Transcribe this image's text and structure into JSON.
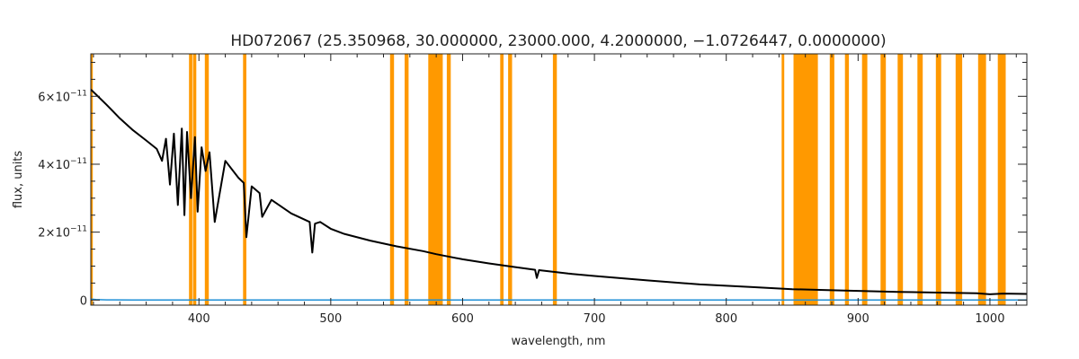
{
  "chart_data": {
    "type": "line",
    "title": "HD072067    (25.350968, 30.000000, 23000.000, 4.2000000, −1.0726447, 0.0000000)",
    "xlabel": "wavelength, nm",
    "ylabel": "flux, units",
    "xlim": [
      318,
      1028
    ],
    "ylim": [
      -1.5e-12,
      7.25e-11
    ],
    "x_ticks": [
      {
        "value": 400,
        "label": "400"
      },
      {
        "value": 500,
        "label": "500"
      },
      {
        "value": 600,
        "label": "600"
      },
      {
        "value": 700,
        "label": "700"
      },
      {
        "value": 800,
        "label": "800"
      },
      {
        "value": 900,
        "label": "900"
      },
      {
        "value": 1000,
        "label": "1000"
      }
    ],
    "y_ticks": [
      {
        "value": 0,
        "label": "0",
        "mantissa": "",
        "exponent": ""
      },
      {
        "value": 2e-11,
        "label": "2×10⁻¹¹",
        "mantissa": "2×10",
        "exponent": "−11"
      },
      {
        "value": 4e-11,
        "label": "4×10⁻¹¹",
        "mantissa": "4×10",
        "exponent": "−11"
      },
      {
        "value": 6e-11,
        "label": "6×10⁻¹¹",
        "mantissa": "6×10",
        "exponent": "−11"
      }
    ],
    "grid": false,
    "colors": {
      "spectrum": "#000000",
      "error": "#1e8fd6",
      "bands": "#ff9900",
      "axes": "#222222"
    },
    "series": [
      {
        "role": "spectrum",
        "x": [
          318,
          322,
          330,
          340,
          350,
          360,
          368,
          372,
          375,
          378,
          381,
          384,
          387,
          389,
          391,
          394,
          397,
          399,
          402,
          405,
          408,
          412,
          420,
          430,
          434,
          436,
          440,
          446,
          448,
          455,
          470,
          484,
          486,
          488,
          492,
          500,
          510,
          530,
          550,
          570,
          580,
          600,
          620,
          640,
          655,
          656.3,
          658,
          680,
          700,
          740,
          780,
          820,
          850,
          880,
          900,
          930,
          960,
          990,
          1000,
          1010,
          1028
        ],
        "y": [
          6.2e-11,
          6.05e-11,
          5.75e-11,
          5.35e-11,
          5e-11,
          4.7e-11,
          4.45e-11,
          4.1e-11,
          4.75e-11,
          3.4e-11,
          4.9e-11,
          2.8e-11,
          5.05e-11,
          2.5e-11,
          4.95e-11,
          3e-11,
          4.8e-11,
          2.6e-11,
          4.5e-11,
          3.8e-11,
          4.35e-11,
          2.3e-11,
          4.1e-11,
          3.6e-11,
          3.45e-11,
          1.85e-11,
          3.35e-11,
          3.15e-11,
          2.45e-11,
          2.95e-11,
          2.55e-11,
          2.3e-11,
          1.4e-11,
          2.25e-11,
          2.3e-11,
          2.1e-11,
          1.95e-11,
          1.75e-11,
          1.58e-11,
          1.44e-11,
          1.35e-11,
          1.2e-11,
          1.08e-11,
          9.7e-12,
          8.9e-12,
          6.5e-12,
          8.8e-12,
          7.8e-12,
          7.1e-12,
          5.8e-12,
          4.6e-12,
          3.8e-12,
          3.2e-12,
          2.9e-12,
          2.7e-12,
          2.4e-12,
          2.2e-12,
          2e-12,
          1.7e-12,
          1.9e-12,
          1.8e-12
        ]
      },
      {
        "role": "error",
        "x": [
          318,
          322,
          330,
          350,
          400,
          500,
          600,
          700,
          800,
          900,
          1000,
          1028
        ],
        "y": [
          3e-13,
          1.5e-13,
          6e-14,
          3e-14,
          3e-14,
          2e-14,
          2e-14,
          2e-14,
          2e-14,
          2e-14,
          3e-14,
          3e-14
        ]
      }
    ],
    "bands": [
      [
        318,
        319.5
      ],
      [
        392.5,
        395
      ],
      [
        395.5,
        398
      ],
      [
        404.5,
        407.5
      ],
      [
        433.5,
        436
      ],
      [
        545,
        548
      ],
      [
        556,
        559
      ],
      [
        574,
        585
      ],
      [
        588,
        591
      ],
      [
        628.5,
        631
      ],
      [
        634.5,
        637.5
      ],
      [
        668.5,
        671.5
      ],
      [
        842,
        844
      ],
      [
        851,
        869.5
      ],
      [
        878.5,
        882
      ],
      [
        890,
        893
      ],
      [
        903,
        907
      ],
      [
        917,
        921
      ],
      [
        930,
        934
      ],
      [
        945,
        949
      ],
      [
        959,
        963
      ],
      [
        974,
        979
      ],
      [
        991,
        997
      ],
      [
        1006,
        1012
      ]
    ]
  }
}
